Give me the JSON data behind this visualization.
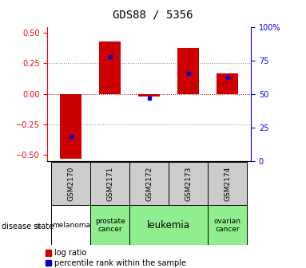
{
  "title": "GDS88 / 5356",
  "samples": [
    "GSM2170",
    "GSM2171",
    "GSM2172",
    "GSM2173",
    "GSM2174"
  ],
  "log_ratios": [
    -0.53,
    0.43,
    -0.02,
    0.38,
    0.17
  ],
  "percentile_ranks": [
    18,
    78,
    47,
    65,
    62
  ],
  "disease_groups": [
    {
      "label": "melanoma",
      "span": [
        0,
        1
      ],
      "color": "#ffffff"
    },
    {
      "label": "prostate\ncancer",
      "span": [
        1,
        2
      ],
      "color": "#90ee90"
    },
    {
      "label": "leukemia",
      "span": [
        2,
        4
      ],
      "color": "#90ee90"
    },
    {
      "label": "ovarian\ncancer",
      "span": [
        4,
        5
      ],
      "color": "#90ee90"
    }
  ],
  "bar_color": "#cc0000",
  "dot_color": "#0000cc",
  "ylim": [
    -0.55,
    0.55
  ],
  "y2lim": [
    0,
    100
  ],
  "y_ticks": [
    -0.5,
    -0.25,
    0,
    0.25,
    0.5
  ],
  "y2_ticks": [
    0,
    25,
    50,
    75,
    100
  ],
  "sample_bg_color": "#cccccc",
  "bar_width": 0.55,
  "legend_red_label": "log ratio",
  "legend_blue_label": "percentile rank within the sample",
  "disease_state_label": "disease state",
  "title_fontsize": 10,
  "tick_fontsize": 7,
  "sample_fontsize": 6.5,
  "disease_fontsize": 6.5,
  "legend_fontsize": 7
}
